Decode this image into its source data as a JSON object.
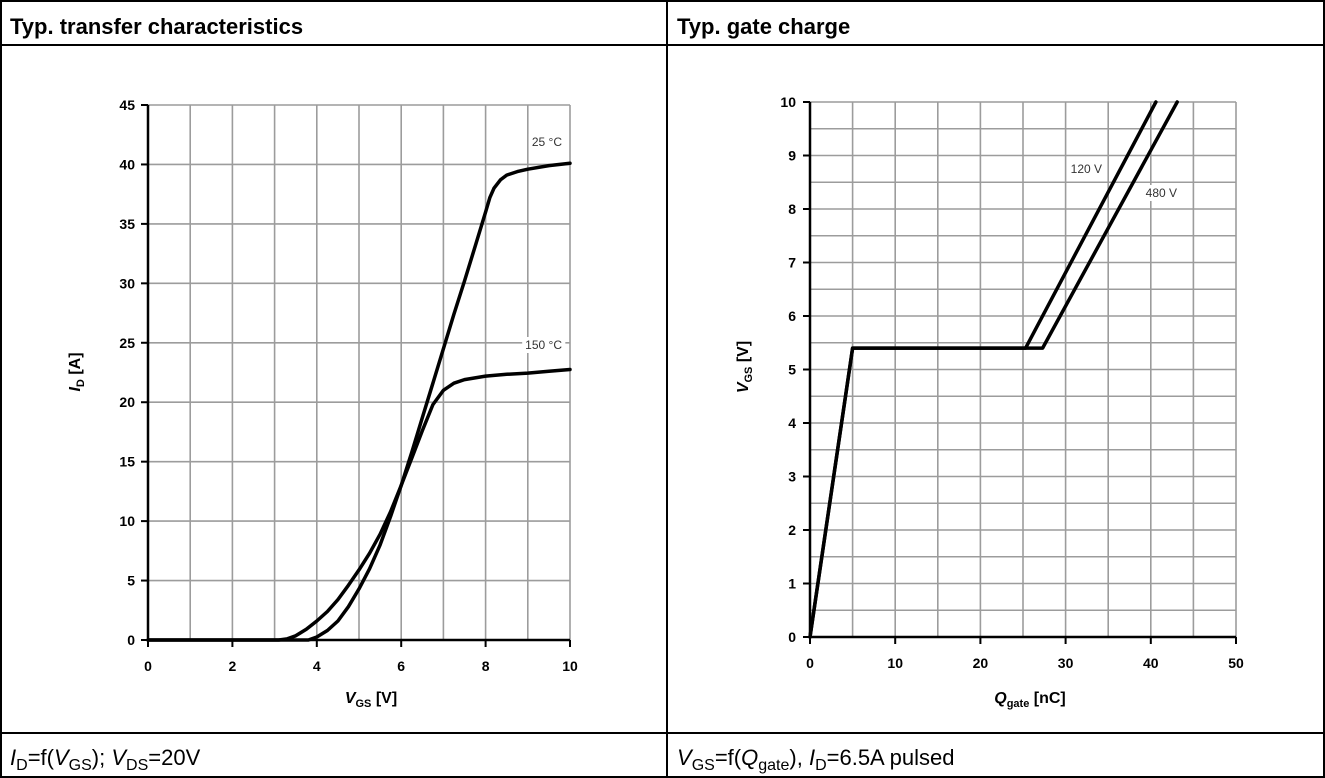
{
  "colors": {
    "grid": "#9c9c9c",
    "axis": "#000000",
    "curve": "#000000",
    "series_label": "#333333"
  },
  "chart_data": [
    {
      "type": "line",
      "title": "Typ. transfer characteristics",
      "xlabel": [
        {
          "i": "V"
        },
        {
          "sub": "GS"
        },
        {
          "t": " [V]"
        }
      ],
      "ylabel": [
        {
          "i": "I"
        },
        {
          "sub": "D"
        },
        {
          "t": " [A]"
        }
      ],
      "caption": [
        {
          "i": "I"
        },
        {
          "sub": "D"
        },
        {
          "t": "=f("
        },
        {
          "i": "V"
        },
        {
          "sub": "GS"
        },
        {
          "t": "); "
        },
        {
          "i": "V"
        },
        {
          "sub": "DS"
        },
        {
          "t": "=20V"
        }
      ],
      "xlim": [
        0,
        10
      ],
      "ylim": [
        0,
        45
      ],
      "xticks": [
        0,
        2,
        4,
        6,
        8,
        10
      ],
      "yticks": [
        0,
        5,
        10,
        15,
        20,
        25,
        30,
        35,
        40,
        45
      ],
      "grid": true,
      "x_grid_step": 1,
      "y_grid_step": 5,
      "series": [
        {
          "name": "25 °C",
          "x": [
            0,
            3.8,
            4.0,
            4.25,
            4.5,
            4.75,
            5.0,
            5.25,
            5.5,
            5.75,
            6.0,
            6.25,
            6.5,
            6.75,
            7.0,
            7.25,
            7.5,
            7.75,
            8.0,
            8.1,
            8.2,
            8.35,
            8.5,
            8.75,
            9.0,
            9.5,
            10
          ],
          "y": [
            0,
            0,
            0.25,
            0.8,
            1.6,
            2.8,
            4.3,
            6.0,
            8.0,
            10.4,
            13.0,
            15.8,
            18.7,
            21.6,
            24.5,
            27.4,
            30.2,
            33.1,
            36.0,
            37.2,
            38.0,
            38.7,
            39.1,
            39.4,
            39.6,
            39.9,
            40.1
          ]
        },
        {
          "name": "150 °C",
          "x": [
            0,
            3.1,
            3.3,
            3.5,
            3.75,
            4.0,
            4.25,
            4.5,
            4.75,
            5.0,
            5.25,
            5.5,
            5.75,
            6.0,
            6.25,
            6.5,
            6.75,
            7.0,
            7.25,
            7.5,
            8.0,
            8.5,
            9.0,
            9.5,
            10
          ],
          "y": [
            0,
            0,
            0.1,
            0.35,
            0.9,
            1.6,
            2.4,
            3.4,
            4.6,
            5.9,
            7.3,
            8.9,
            10.8,
            13.0,
            15.3,
            17.6,
            19.8,
            21.0,
            21.6,
            21.9,
            22.2,
            22.35,
            22.45,
            22.6,
            22.75
          ]
        }
      ]
    },
    {
      "type": "line",
      "title": "Typ. gate charge",
      "xlabel": [
        {
          "i": "Q"
        },
        {
          "sub": "gate"
        },
        {
          "t": " [nC]"
        }
      ],
      "ylabel": [
        {
          "i": "V"
        },
        {
          "sub": "GS"
        },
        {
          "t": " [V]"
        }
      ],
      "caption": [
        {
          "i": "V"
        },
        {
          "sub": "GS"
        },
        {
          "t": "=f("
        },
        {
          "i": "Q"
        },
        {
          "sub": "gate"
        },
        {
          "t": "), "
        },
        {
          "i": "I"
        },
        {
          "sub": "D"
        },
        {
          "t": "=6.5A pulsed"
        }
      ],
      "xlim": [
        0,
        50
      ],
      "ylim": [
        0,
        10
      ],
      "xticks": [
        0,
        10,
        20,
        30,
        40,
        50
      ],
      "yticks": [
        0,
        1,
        2,
        3,
        4,
        5,
        6,
        7,
        8,
        9,
        10
      ],
      "grid": true,
      "x_grid_step": 5,
      "y_grid_step": 0.5,
      "series": [
        {
          "name": "120 V",
          "x": [
            0,
            5,
            25.3,
            40.6
          ],
          "y": [
            0,
            5.4,
            5.4,
            10
          ]
        },
        {
          "name": "480 V",
          "x": [
            0,
            5,
            27.3,
            43.1
          ],
          "y": [
            0,
            5.4,
            5.4,
            10
          ]
        }
      ]
    }
  ]
}
